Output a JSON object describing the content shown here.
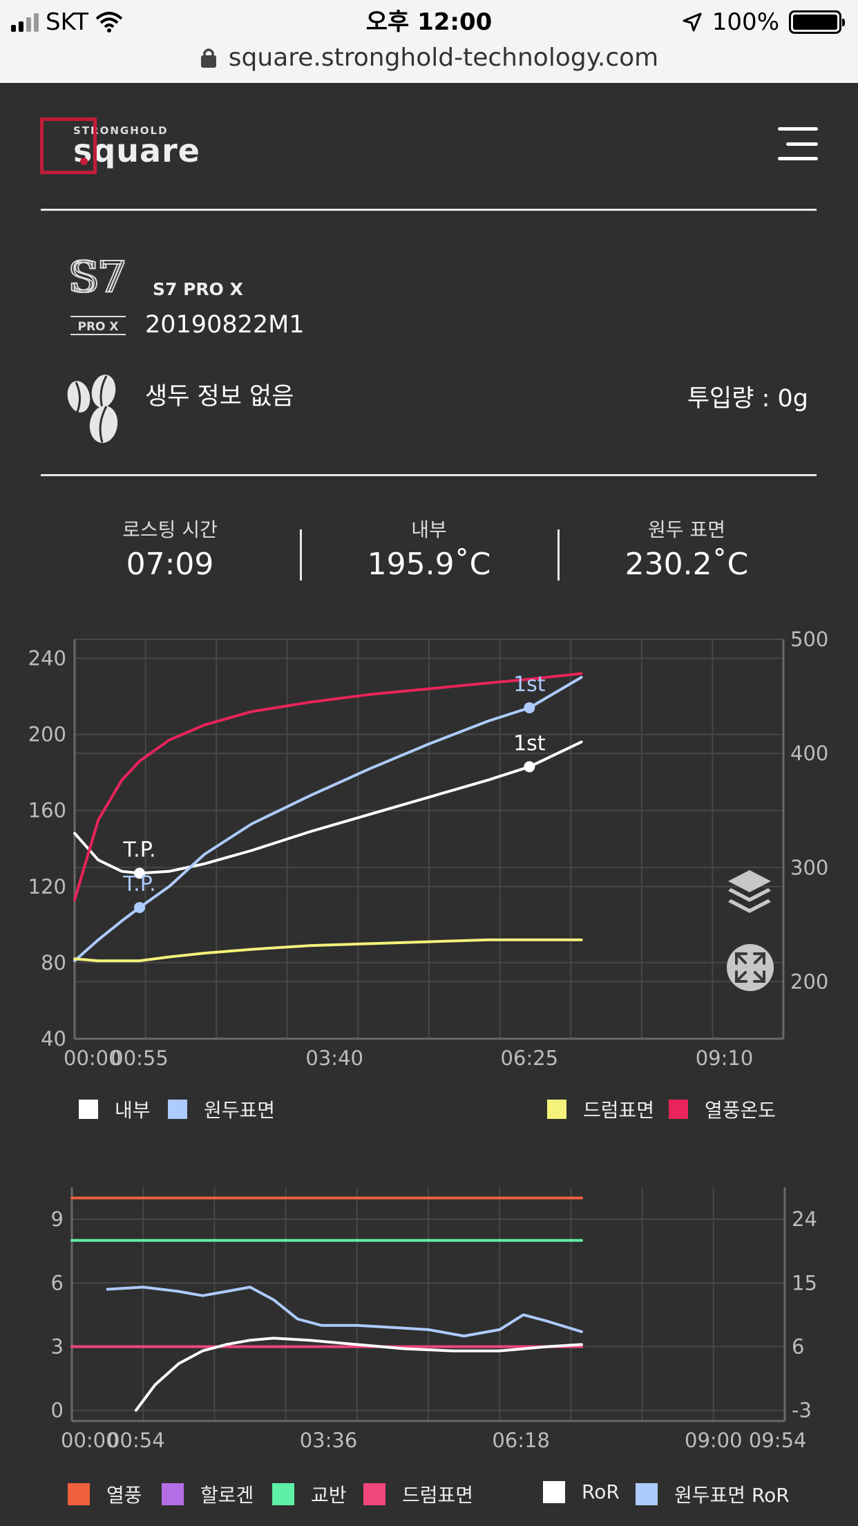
{
  "status_bar": {
    "carrier": "SKT",
    "time": "오후 12:00",
    "battery": "100%",
    "url": "square.stronghold-technology.com"
  },
  "brand": {
    "small": "STRONGHOLD",
    "name": "square"
  },
  "device": {
    "model": "S7 PRO X",
    "serial": "20190822M1",
    "icon_label": "PRO X"
  },
  "bean": {
    "label": "생두 정보 없음",
    "input_amount": "투입량 : 0g"
  },
  "stats": [
    {
      "label": "로스팅 시간",
      "value": "07:09"
    },
    {
      "label": "내부",
      "value": "195.9˚C"
    },
    {
      "label": "원두 표면",
      "value": "230.2˚C"
    }
  ],
  "charts": {
    "temperature": {
      "type": "line",
      "x_ticks": [
        "00:00",
        "00:55",
        "03:40",
        "06:25",
        "09:10"
      ],
      "x_tick_seconds": [
        0,
        55,
        220,
        385,
        550
      ],
      "y_left_ticks": [
        "40",
        "80",
        "120",
        "160",
        "200",
        "240"
      ],
      "y_right_ticks": [
        "200",
        "300",
        "400",
        "500"
      ],
      "ylim_left": [
        40,
        250
      ],
      "ylim_right": [
        150,
        500
      ],
      "xlim_seconds": [
        0,
        600
      ],
      "series": [
        {
          "name": "내부",
          "color": "#ffffff",
          "axis": "left",
          "x": [
            0,
            20,
            40,
            55,
            80,
            110,
            150,
            200,
            250,
            300,
            350,
            385,
            429
          ],
          "y": [
            148,
            134,
            128,
            127,
            128,
            132,
            139,
            149,
            158,
            167,
            176,
            183,
            196
          ]
        },
        {
          "name": "원두표면",
          "color": "#aecbff",
          "axis": "left",
          "x": [
            0,
            20,
            40,
            55,
            80,
            110,
            150,
            200,
            250,
            300,
            350,
            385,
            429
          ],
          "y": [
            81,
            92,
            102,
            109,
            120,
            137,
            153,
            168,
            182,
            195,
            207,
            214,
            230
          ]
        },
        {
          "name": "드럼표면",
          "color": "#f4f27a",
          "axis": "left",
          "x": [
            0,
            20,
            40,
            55,
            80,
            110,
            150,
            200,
            250,
            300,
            350,
            385,
            429
          ],
          "y": [
            82,
            81,
            81,
            81,
            83,
            85,
            87,
            89,
            90,
            91,
            92,
            92,
            92
          ]
        },
        {
          "name": "열풍온도",
          "color": "#e8245a",
          "axis": "left",
          "x": [
            0,
            20,
            40,
            55,
            80,
            110,
            150,
            200,
            250,
            300,
            350,
            385,
            429
          ],
          "y": [
            113,
            155,
            176,
            186,
            197,
            205,
            212,
            217,
            221,
            224,
            227,
            229,
            232
          ]
        }
      ],
      "markers": [
        {
          "label": "T.P.",
          "series": "내부",
          "x": 55,
          "y": 127
        },
        {
          "label": "T.P.",
          "series": "원두표면",
          "x": 55,
          "y": 109
        },
        {
          "label": "1st",
          "series": "내부",
          "x": 385,
          "y": 183
        },
        {
          "label": "1st",
          "series": "원두표면",
          "x": 385,
          "y": 214
        }
      ]
    },
    "control": {
      "type": "line",
      "x_ticks": [
        "00:00",
        "00:54",
        "03:36",
        "06:18",
        "09:00",
        "09:54"
      ],
      "x_tick_seconds": [
        0,
        54,
        216,
        378,
        540,
        594
      ],
      "y_left_ticks": [
        "0",
        "3",
        "6",
        "9"
      ],
      "y_right_ticks": [
        "-3",
        "6",
        "15",
        "24"
      ],
      "ylim_left": [
        -0.5,
        10.5
      ],
      "ylim_right": [
        -4.5,
        28.5
      ],
      "xlim_seconds": [
        0,
        600
      ],
      "series": [
        {
          "name": "열풍",
          "color": "#f0603c",
          "axis": "left",
          "x": [
            0,
            429
          ],
          "y": [
            10,
            10
          ]
        },
        {
          "name": "할로겐",
          "color": "#b36ee6",
          "axis": "left",
          "x": [],
          "y": []
        },
        {
          "name": "교반",
          "color": "#5ef0a6",
          "axis": "left",
          "x": [
            0,
            429
          ],
          "y": [
            8,
            8
          ]
        },
        {
          "name": "드럼표면",
          "color": "#f0467a",
          "axis": "left",
          "x": [
            0,
            429
          ],
          "y": [
            3,
            3
          ]
        },
        {
          "name": "RoR",
          "color": "#ffffff",
          "axis": "left",
          "x": [
            54,
            70,
            90,
            110,
            130,
            150,
            170,
            200,
            240,
            280,
            320,
            360,
            400,
            429
          ],
          "y": [
            0,
            1.2,
            2.2,
            2.8,
            3.1,
            3.3,
            3.4,
            3.3,
            3.1,
            2.9,
            2.8,
            2.8,
            3.0,
            3.1
          ]
        },
        {
          "name": "원두표면 RoR",
          "color": "#aecbff",
          "axis": "left",
          "x": [
            30,
            60,
            90,
            110,
            130,
            150,
            170,
            190,
            210,
            240,
            270,
            300,
            330,
            360,
            380,
            400,
            429
          ],
          "y": [
            5.7,
            5.8,
            5.6,
            5.4,
            5.6,
            5.8,
            5.2,
            4.3,
            4.0,
            4.0,
            3.9,
            3.8,
            3.5,
            3.8,
            4.5,
            4.2,
            3.7
          ]
        }
      ]
    }
  },
  "controls": {
    "layers": "layers-icon",
    "expand": "expand-icon"
  }
}
